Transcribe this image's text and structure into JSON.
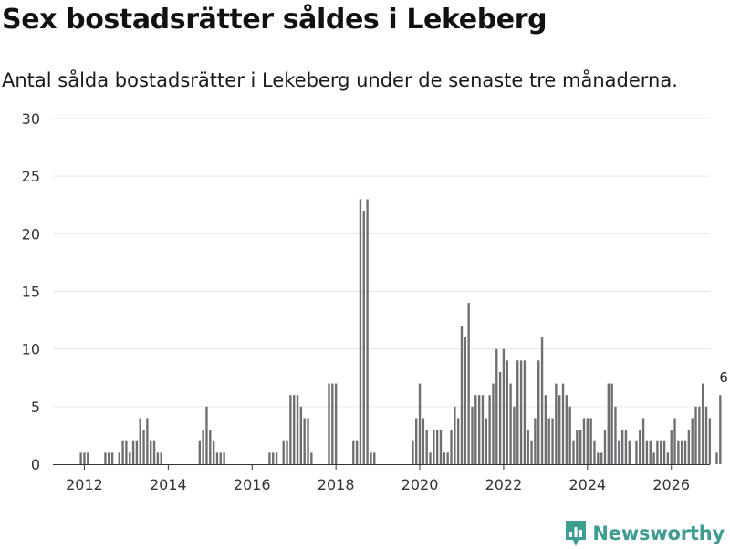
{
  "title": "Sex bostadsrätter såldes i Lekeberg",
  "subtitle": "Antal sålda bostadsrätter i Lekeberg under de senaste tre månaderna.",
  "brand": {
    "name": "Newsworthy",
    "color": "#3f9c93",
    "icon": "newsworthy-logo-icon"
  },
  "colors": {
    "bar": "#6f6e73",
    "highlight": "#2a9d8f",
    "grid": "#e6e6e6",
    "axis": "#333333",
    "text": "#333333"
  },
  "chart_data": {
    "type": "bar",
    "title": "Sex bostadsrätter såldes i Lekeberg",
    "xlabel": "",
    "ylabel": "",
    "ylim": [
      0,
      30
    ],
    "yticks": [
      0,
      5,
      10,
      15,
      20,
      25,
      30
    ],
    "xticks": [
      {
        "label": "2012",
        "value": 2012
      },
      {
        "label": "2014",
        "value": 2014
      },
      {
        "label": "2016",
        "value": 2016
      },
      {
        "label": "2018",
        "value": 2018
      },
      {
        "label": "2020",
        "value": 2020
      },
      {
        "label": "2022",
        "value": 2022
      },
      {
        "label": "2024",
        "value": 2024
      },
      {
        "label": "2026",
        "value": 2026
      }
    ],
    "x_range": [
      2011.25,
      2026.92
    ],
    "start": 2011.3333,
    "step": 0.0833333,
    "values": [
      0,
      0,
      0,
      0,
      0,
      0,
      0,
      1,
      1,
      1,
      0,
      0,
      0,
      0,
      1,
      1,
      1,
      0,
      1,
      2,
      2,
      1,
      2,
      2,
      4,
      3,
      4,
      2,
      2,
      1,
      1,
      0,
      0,
      0,
      0,
      0,
      0,
      0,
      0,
      0,
      0,
      2,
      3,
      5,
      3,
      2,
      1,
      1,
      1,
      0,
      0,
      0,
      0,
      0,
      0,
      0,
      0,
      0,
      0,
      0,
      0,
      1,
      1,
      1,
      0,
      2,
      2,
      6,
      6,
      6,
      5,
      4,
      4,
      1,
      0,
      0,
      0,
      0,
      7,
      7,
      7,
      0,
      0,
      0,
      0,
      2,
      2,
      23,
      22,
      23,
      1,
      1,
      0,
      0,
      0,
      0,
      0,
      0,
      0,
      0,
      0,
      0,
      2,
      4,
      7,
      4,
      3,
      1,
      3,
      3,
      3,
      1,
      1,
      3,
      5,
      4,
      12,
      11,
      14,
      5,
      6,
      6,
      6,
      4,
      6,
      7,
      10,
      8,
      10,
      9,
      7,
      5,
      9,
      9,
      9,
      3,
      2,
      4,
      9,
      11,
      6,
      4,
      4,
      7,
      6,
      7,
      6,
      5,
      2,
      3,
      3,
      4,
      4,
      4,
      2,
      1,
      1,
      3,
      7,
      7,
      5,
      2,
      3,
      3,
      2,
      0,
      2,
      3,
      4,
      2,
      2,
      1,
      2,
      2,
      2,
      1,
      3,
      4,
      2,
      2,
      2,
      3,
      4,
      5,
      5,
      7,
      5,
      4,
      0,
      1,
      6
    ],
    "highlight": {
      "index": 191,
      "value": 6,
      "label": "6"
    }
  }
}
